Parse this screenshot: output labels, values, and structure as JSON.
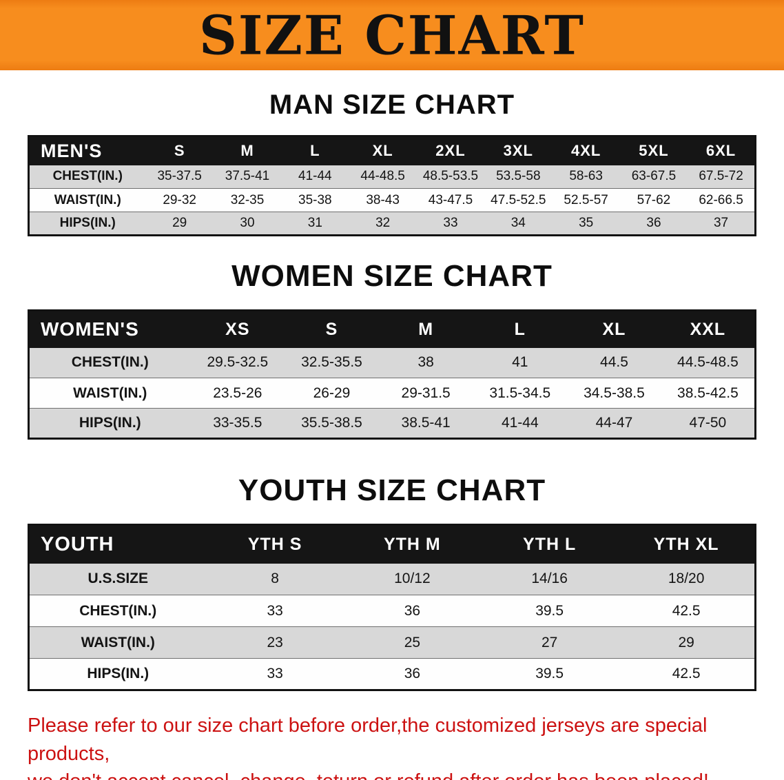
{
  "banner": {
    "title": "SIZE CHART"
  },
  "colors": {
    "banner_bg": "#f78d1e",
    "table_header_bg": "#151515",
    "row_shade": "#d8d8d8",
    "footer_red": "#cc1212"
  },
  "sections": [
    {
      "heading": "MAN SIZE CHART",
      "table": {
        "header_label": "MEN'S",
        "columns": [
          "S",
          "M",
          "L",
          "XL",
          "2XL",
          "3XL",
          "4XL",
          "5XL",
          "6XL"
        ],
        "rows": [
          {
            "label": "CHEST(IN.)",
            "values": [
              "35-37.5",
              "37.5-41",
              "41-44",
              "44-48.5",
              "48.5-53.5",
              "53.5-58",
              "58-63",
              "63-67.5",
              "67.5-72"
            ]
          },
          {
            "label": "WAIST(IN.)",
            "values": [
              "29-32",
              "32-35",
              "35-38",
              "38-43",
              "43-47.5",
              "47.5-52.5",
              "52.5-57",
              "57-62",
              "62-66.5"
            ]
          },
          {
            "label": "HIPS(IN.)",
            "values": [
              "29",
              "30",
              "31",
              "32",
              "33",
              "34",
              "35",
              "36",
              "37"
            ]
          }
        ]
      }
    },
    {
      "heading": "WOMEN SIZE CHART",
      "table": {
        "header_label": "WOMEN'S",
        "columns": [
          "XS",
          "S",
          "M",
          "L",
          "XL",
          "XXL"
        ],
        "rows": [
          {
            "label": "CHEST(IN.)",
            "values": [
              "29.5-32.5",
              "32.5-35.5",
              "38",
              "41",
              "44.5",
              "44.5-48.5"
            ]
          },
          {
            "label": "WAIST(IN.)",
            "values": [
              "23.5-26",
              "26-29",
              "29-31.5",
              "31.5-34.5",
              "34.5-38.5",
              "38.5-42.5"
            ]
          },
          {
            "label": "HIPS(IN.)",
            "values": [
              "33-35.5",
              "35.5-38.5",
              "38.5-41",
              "41-44",
              "44-47",
              "47-50"
            ]
          }
        ]
      }
    },
    {
      "heading": "YOUTH SIZE CHART",
      "table": {
        "header_label": "YOUTH",
        "columns": [
          "YTH S",
          "YTH M",
          "YTH L",
          "YTH XL"
        ],
        "rows": [
          {
            "label": "U.S.SIZE",
            "values": [
              "8",
              "10/12",
              "14/16",
              "18/20"
            ]
          },
          {
            "label": "CHEST(IN.)",
            "values": [
              "33",
              "36",
              "39.5",
              "42.5"
            ]
          },
          {
            "label": "WAIST(IN.)",
            "values": [
              "23",
              "25",
              "27",
              "29"
            ]
          },
          {
            "label": "HIPS(IN.)",
            "values": [
              "33",
              "36",
              "39.5",
              "42.5"
            ]
          }
        ]
      }
    }
  ],
  "footer": {
    "line1": "Please refer to our size chart before order,the customized jerseys are special products,",
    "line2": "we don't accept cancel, change, teturn or refund after order has been placed!"
  }
}
